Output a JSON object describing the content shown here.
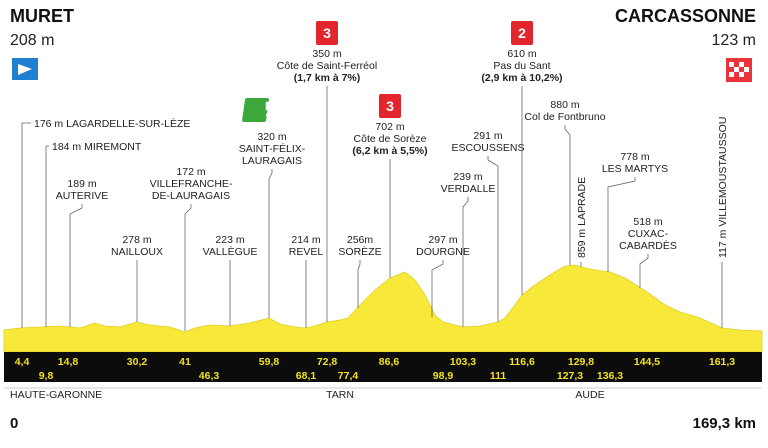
{
  "start": {
    "name": "MURET",
    "altitude": "208 m"
  },
  "finish": {
    "name": "CARCASSONNE",
    "altitude": "123 m"
  },
  "waypoints": [
    {
      "lines": [
        "176 m LAGARDELLE-SUR-LÈZE"
      ]
    },
    {
      "lines": [
        "184 m MIREMONT"
      ]
    },
    {
      "lines": [
        "189 m",
        "AUTERIVE"
      ]
    },
    {
      "lines": [
        "278 m",
        "NAILLOUX"
      ]
    },
    {
      "lines": [
        "172 m",
        "VILLEFRANCHE-",
        "DE-LAURAGAIS"
      ]
    },
    {
      "lines": [
        "223 m",
        "VALLÈGUE"
      ]
    },
    {
      "lines": [
        "320 m",
        "SAINT-FÉLIX-",
        "LAURAGAIS"
      ]
    },
    {
      "lines": [
        "214 m",
        "REVEL"
      ]
    },
    {
      "lines": [
        "350 m",
        "Côte de Saint-Ferréol",
        "(1,7 km à 7%)"
      ],
      "category": "3"
    },
    {
      "lines": [
        "256m",
        "SORÈZE"
      ]
    },
    {
      "lines": [
        "702 m",
        "Côte de Sorèze",
        "(6,2 km à 5,5%)"
      ],
      "category": "3"
    },
    {
      "lines": [
        "297 m",
        "DOURGNE"
      ]
    },
    {
      "lines": [
        "239 m",
        "VERDALLE"
      ]
    },
    {
      "lines": [
        "291 m",
        "ESCOUSSENS"
      ]
    },
    {
      "lines": [
        "610 m",
        "Pas du Sant",
        "(2,9 km à 10,2%)"
      ],
      "category": "2"
    },
    {
      "lines": [
        "880 m",
        "Col de Fontbruno"
      ]
    },
    {
      "lines": [
        "859 m LAPRADE"
      ]
    },
    {
      "lines": [
        "778 m",
        "LES MARTYS"
      ]
    },
    {
      "lines": [
        "518 m",
        "CUXAC-",
        "CABARDÈS"
      ]
    },
    {
      "lines": [
        "117 m VILLEMOUSTAUSSOU"
      ]
    }
  ],
  "km_top": [
    "4,4",
    "14,8",
    "30,2",
    "41",
    "59,8",
    "72,8",
    "86,6",
    "103,3",
    "116,6",
    "129,8",
    "144,5",
    "161,3"
  ],
  "km_bottom": [
    "9,8",
    "46,3",
    "68,1",
    "77,4",
    "98,9",
    "111",
    "127,3",
    "136,3"
  ],
  "regions": [
    "HAUTE-GARONNE",
    "TARN",
    "AUDE"
  ],
  "distance_start": "0",
  "distance_end": "169,3 km"
}
